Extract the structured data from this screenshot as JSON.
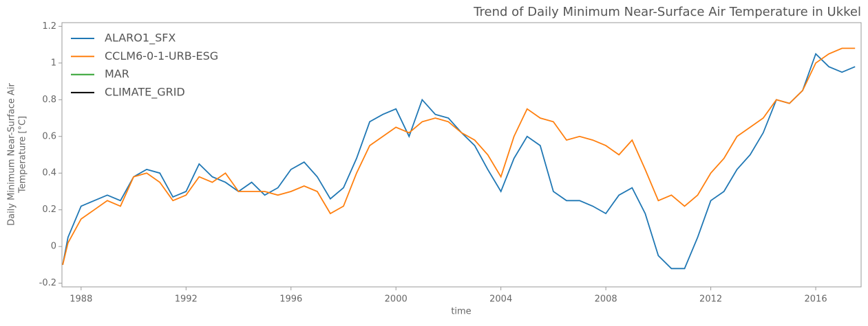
{
  "chart_data": {
    "type": "line",
    "title": "Trend of Daily Minimum Near-Surface Air Temperature in Ukkel",
    "xlabel": "time",
    "ylabel": [
      "Daily Minimum Near-Surface Air",
      "Temperature [°C]"
    ],
    "x": [
      1987.3,
      1987.5,
      1988,
      1988.5,
      1989,
      1989.5,
      1990,
      1990.5,
      1991,
      1991.5,
      1992,
      1992.5,
      1993,
      1993.5,
      1994,
      1994.5,
      1995,
      1995.5,
      1996,
      1996.5,
      1997,
      1997.5,
      1998,
      1998.5,
      1999,
      1999.5,
      2000,
      2000.5,
      2001,
      2001.5,
      2002,
      2002.5,
      2003,
      2003.5,
      2004,
      2004.5,
      2005,
      2005.5,
      2006,
      2006.5,
      2007,
      2007.5,
      2008,
      2008.5,
      2009,
      2009.5,
      2010,
      2010.5,
      2011,
      2011.5,
      2012,
      2012.5,
      2013,
      2013.5,
      2014,
      2014.5,
      2015,
      2015.5,
      2016,
      2016.5,
      2017,
      2017.5
    ],
    "series": [
      {
        "name": "ALARO1_SFX",
        "color": "#1f77b4",
        "values": [
          -0.1,
          0.05,
          0.22,
          0.25,
          0.28,
          0.25,
          0.38,
          0.42,
          0.4,
          0.27,
          0.3,
          0.45,
          0.38,
          0.35,
          0.3,
          0.35,
          0.28,
          0.32,
          0.42,
          0.46,
          0.38,
          0.26,
          0.32,
          0.48,
          0.68,
          0.72,
          0.75,
          0.6,
          0.8,
          0.72,
          0.7,
          0.62,
          0.55,
          0.42,
          0.3,
          0.48,
          0.6,
          0.55,
          0.3,
          0.25,
          0.25,
          0.22,
          0.18,
          0.28,
          0.32,
          0.18,
          -0.05,
          -0.12,
          -0.12,
          0.05,
          0.25,
          0.3,
          0.42,
          0.5,
          0.62,
          0.8,
          0.78,
          0.85,
          1.05,
          0.98,
          0.95,
          0.98
        ]
      },
      {
        "name": "CCLM6-0-1-URB-ESG",
        "color": "#ff7f0e",
        "values": [
          -0.1,
          0.02,
          0.15,
          0.2,
          0.25,
          0.22,
          0.38,
          0.4,
          0.35,
          0.25,
          0.28,
          0.38,
          0.35,
          0.4,
          0.3,
          0.3,
          0.3,
          0.28,
          0.3,
          0.33,
          0.3,
          0.18,
          0.22,
          0.4,
          0.55,
          0.6,
          0.65,
          0.62,
          0.68,
          0.7,
          0.68,
          0.62,
          0.58,
          0.5,
          0.38,
          0.6,
          0.75,
          0.7,
          0.68,
          0.58,
          0.6,
          0.58,
          0.55,
          0.5,
          0.58,
          0.42,
          0.25,
          0.28,
          0.22,
          0.28,
          0.4,
          0.48,
          0.6,
          0.65,
          0.7,
          0.8,
          0.78,
          0.85,
          1.0,
          1.05,
          1.08,
          1.08
        ]
      },
      {
        "name": "MAR",
        "color": "#2ca02c",
        "values": [
          null,
          null,
          null,
          null,
          null,
          null,
          null,
          null,
          null,
          null,
          null,
          null,
          null,
          null,
          null,
          null,
          null,
          null,
          null,
          null,
          null,
          null,
          null,
          null,
          null,
          null,
          null,
          null,
          null,
          null,
          null,
          null,
          null,
          null,
          null,
          null,
          null,
          null,
          null,
          null,
          null,
          null,
          null,
          null,
          null,
          null,
          null,
          null,
          null,
          null,
          null,
          null,
          null,
          null,
          null,
          null,
          null,
          null,
          null,
          null,
          null,
          null
        ]
      },
      {
        "name": "CLIMATE_GRID",
        "color": "#000000",
        "values": [
          null,
          null,
          null,
          null,
          null,
          null,
          null,
          null,
          null,
          null,
          null,
          null,
          null,
          null,
          null,
          null,
          null,
          null,
          null,
          null,
          null,
          null,
          null,
          null,
          null,
          null,
          null,
          null,
          null,
          null,
          null,
          null,
          null,
          null,
          null,
          null,
          null,
          null,
          null,
          null,
          null,
          null,
          null,
          null,
          null,
          null,
          null,
          null,
          null,
          null,
          null,
          null,
          null,
          null,
          null,
          null,
          null,
          null,
          null,
          null,
          null,
          null
        ]
      }
    ],
    "xlim": [
      1987.27,
      2017.73
    ],
    "xticks": [
      1988,
      1992,
      1996,
      2000,
      2004,
      2008,
      2012,
      2016
    ],
    "ylim": [
      -0.22,
      1.22
    ],
    "yticks": [
      -0.2,
      0.0,
      0.2,
      0.4,
      0.6,
      0.8,
      1.0,
      1.2
    ],
    "legend": "upper left",
    "grid": false
  }
}
